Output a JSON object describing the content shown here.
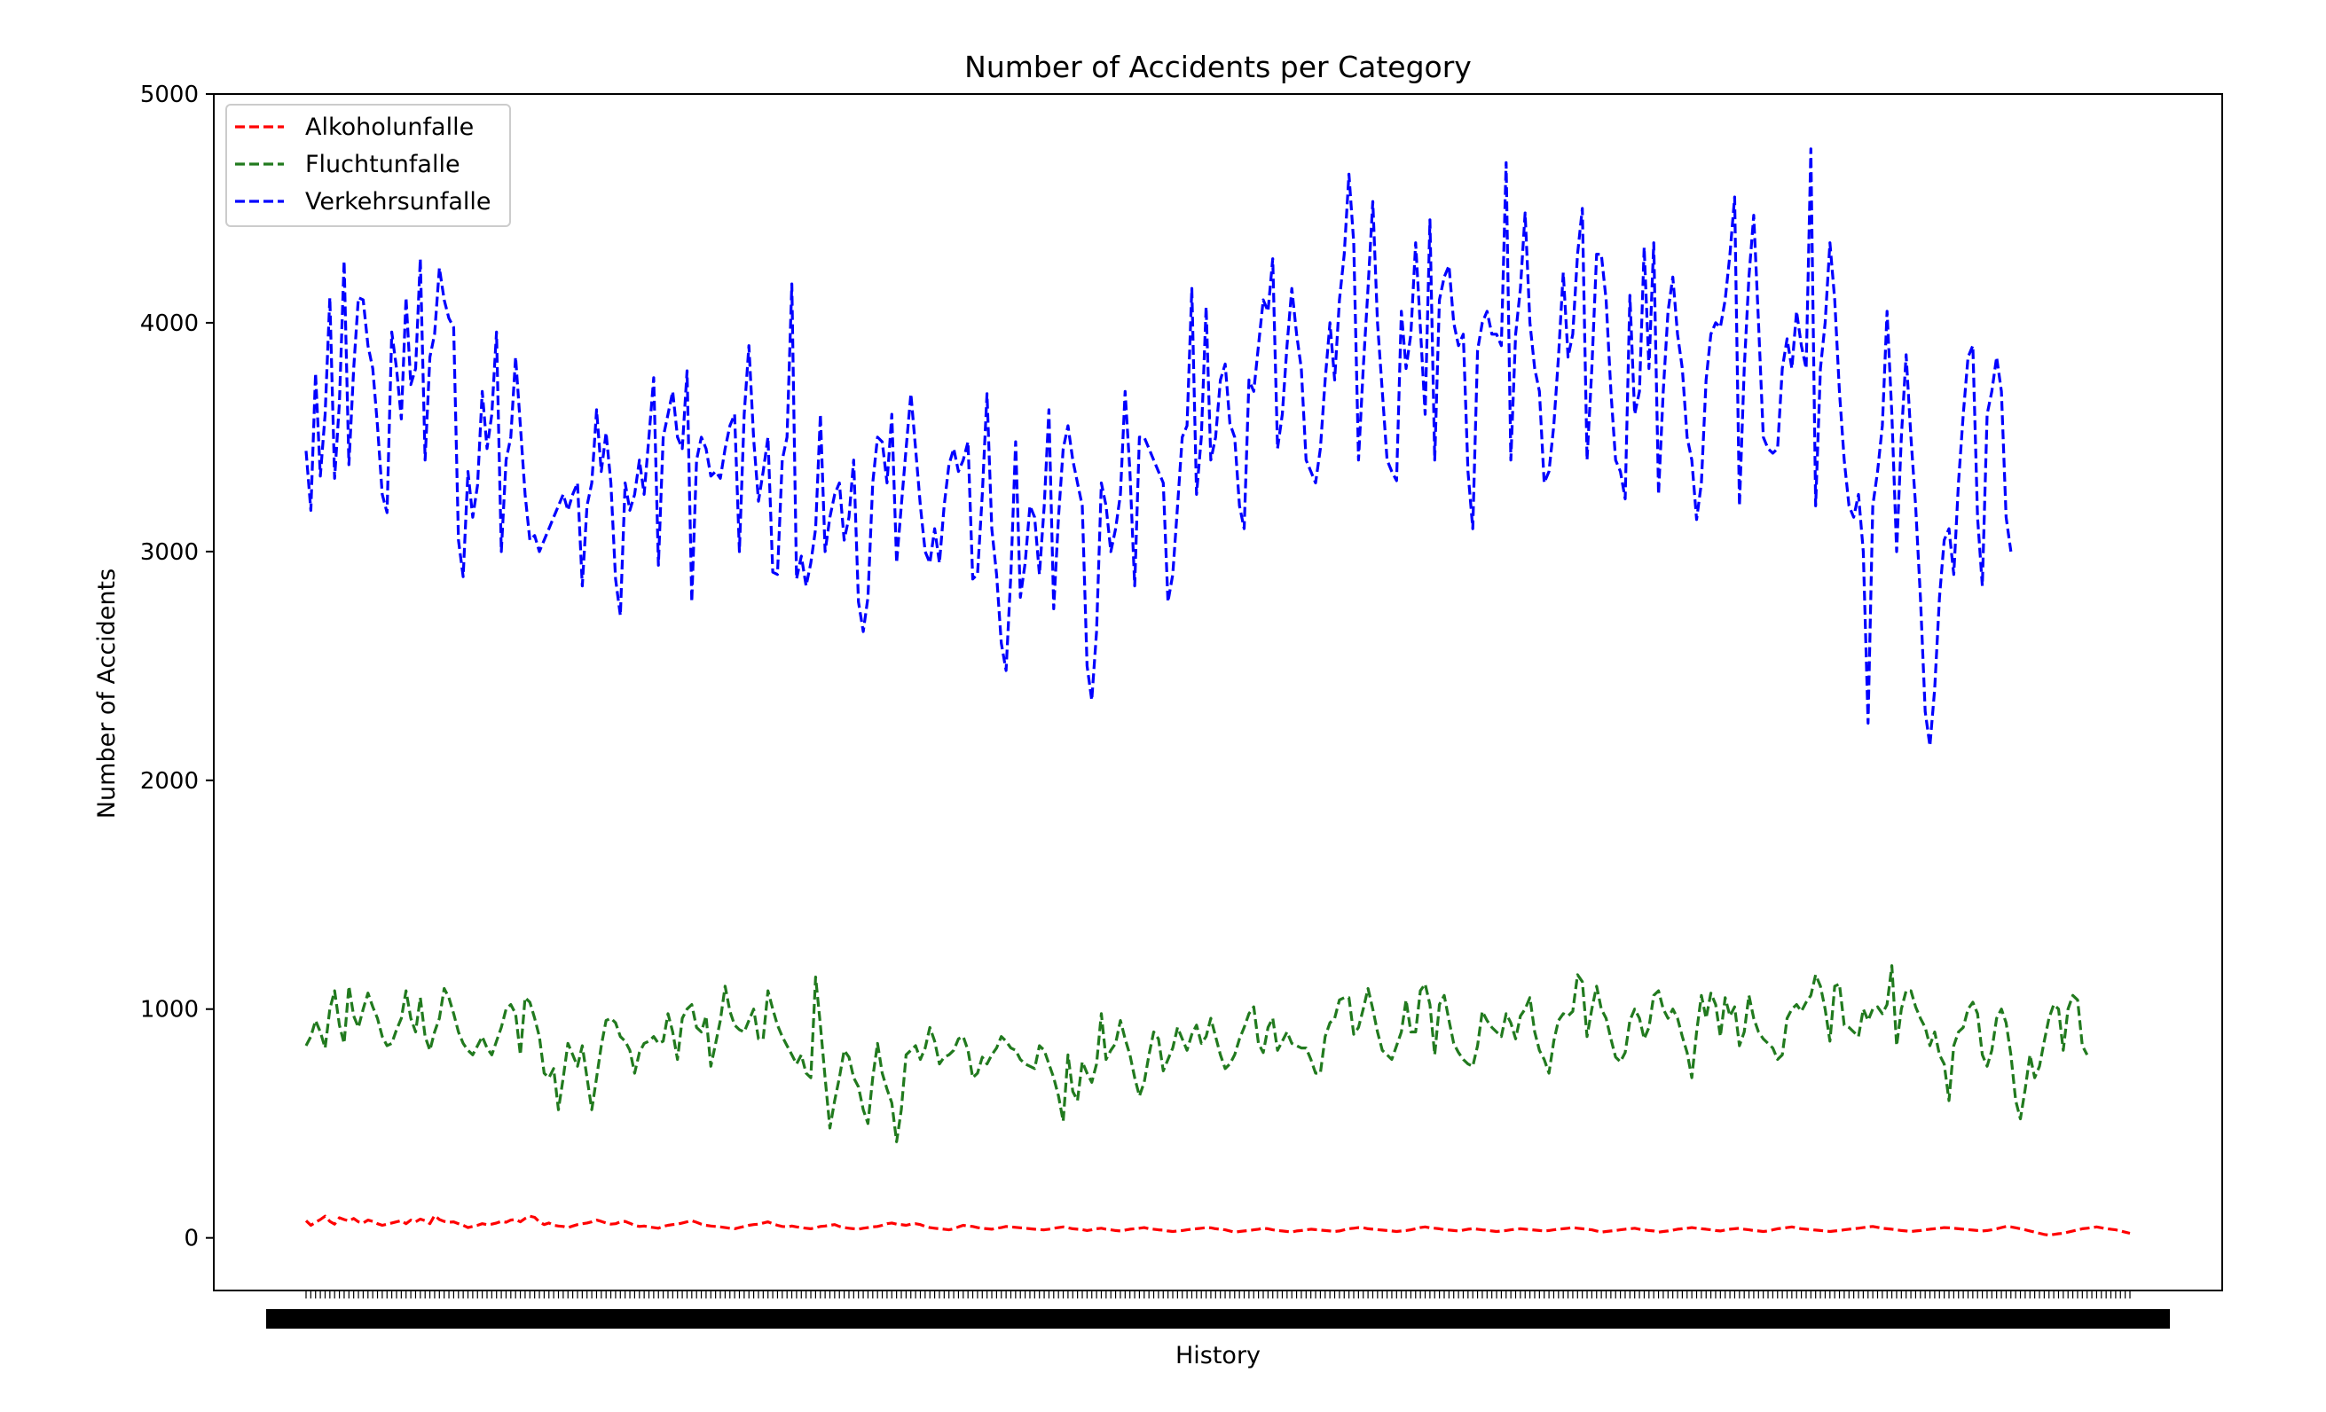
{
  "chart_data": {
    "type": "line",
    "title": "Number of Accidents per Category",
    "xlabel": "History",
    "ylabel": "Number of Accidents",
    "ylim": [
      -230,
      5000
    ],
    "yticks": [
      0,
      1000,
      2000,
      3000,
      4000,
      5000
    ],
    "grid": false,
    "legend_position": "top-left",
    "x_tick_labels": "illegible overlapping date labels (one per data point)",
    "series": [
      {
        "name": "Alkoholunfalle",
        "color": "#ff0000",
        "linestyle": "dashed",
        "values": [
          75,
          55,
          68,
          80,
          95,
          72,
          60,
          88,
          80,
          74,
          85,
          70,
          65,
          78,
          72,
          62,
          55,
          60,
          65,
          70,
          75,
          62,
          78,
          70,
          82,
          75,
          62,
          98,
          80,
          72,
          68,
          70,
          62,
          55,
          45,
          50,
          55,
          62,
          58,
          60,
          65,
          72,
          68,
          78,
          80,
          70,
          85,
          95,
          90,
          70,
          58,
          65,
          55,
          52,
          50,
          45,
          52,
          58,
          62,
          65,
          70,
          78,
          72,
          65,
          60,
          62,
          70,
          72,
          64,
          55,
          50,
          52,
          48,
          45,
          42,
          50,
          55,
          58,
          60,
          65,
          70,
          75,
          68,
          60,
          55,
          52,
          50,
          48,
          45,
          42,
          40,
          45,
          50,
          55,
          58,
          60,
          65,
          70,
          62,
          55,
          50,
          48,
          52,
          48,
          45,
          42,
          40,
          45,
          50,
          52,
          55,
          58,
          50,
          45,
          42,
          40,
          38,
          42,
          45,
          48,
          50,
          55,
          62,
          65,
          60,
          58,
          55,
          60,
          62,
          58,
          50,
          45,
          42,
          40,
          38,
          35,
          40,
          48,
          55,
          52,
          50,
          45,
          42,
          40,
          38,
          42,
          45,
          50,
          48,
          46,
          44,
          42,
          40,
          38,
          36,
          35,
          38,
          42,
          45,
          48,
          44,
          40,
          38,
          36,
          32,
          35,
          40,
          42,
          38,
          35,
          32,
          30,
          34,
          38,
          40,
          42,
          45,
          40,
          38,
          35,
          34,
          30,
          28,
          30,
          32,
          35,
          38,
          40,
          42,
          45,
          44,
          40,
          38,
          35,
          30,
          25,
          28,
          30,
          32,
          35,
          38,
          42,
          40,
          35,
          32,
          30,
          28,
          26,
          30,
          32,
          35,
          38,
          36,
          34,
          32,
          30,
          28,
          30,
          35,
          40,
          42,
          45,
          44,
          40,
          38,
          36,
          34,
          32,
          30,
          28,
          30,
          32,
          35,
          40,
          45,
          48,
          44,
          42,
          40,
          36,
          34,
          32,
          30,
          34,
          38,
          40,
          38,
          35,
          34,
          30,
          28,
          30,
          32,
          35,
          38,
          40,
          38,
          36,
          34,
          32,
          30,
          32,
          35,
          38,
          40,
          42,
          45,
          42,
          40,
          38,
          35,
          30,
          25,
          28,
          30,
          32,
          35,
          38,
          40,
          42,
          38,
          35,
          32,
          30,
          25,
          28,
          30,
          34,
          38,
          40,
          42,
          45,
          42,
          40,
          38,
          35,
          32,
          30,
          34,
          38,
          40,
          42,
          38,
          35,
          32,
          30,
          28,
          30,
          35,
          40,
          42,
          45,
          48,
          44,
          40,
          38,
          36,
          34,
          32,
          30,
          28,
          30,
          32,
          35,
          38,
          40,
          42,
          45,
          48,
          50,
          46,
          42,
          40,
          38,
          35,
          32,
          30,
          28,
          30,
          32,
          35,
          38,
          40,
          42,
          45,
          44,
          42,
          40,
          38,
          36,
          34,
          32,
          30,
          32,
          35,
          40,
          45,
          50,
          48,
          44,
          40,
          35,
          30,
          25,
          20,
          15,
          12,
          15,
          18,
          20,
          25,
          30,
          35,
          40,
          42,
          45,
          48,
          44,
          40,
          38,
          35,
          30,
          25,
          20
        ]
      },
      {
        "name": "Fluchtunfalle",
        "color": "#217a1e",
        "linestyle": "dashed",
        "values": [
          840,
          880,
          950,
          900,
          830,
          1000,
          1080,
          930,
          850,
          1100,
          970,
          920,
          1000,
          1070,
          1010,
          960,
          880,
          840,
          850,
          910,
          960,
          1080,
          960,
          900,
          1050,
          880,
          820,
          900,
          960,
          1090,
          1050,
          980,
          900,
          850,
          820,
          800,
          840,
          880,
          830,
          800,
          860,
          920,
          1000,
          1020,
          980,
          800,
          1050,
          1030,
          960,
          880,
          720,
          700,
          740,
          560,
          700,
          850,
          800,
          750,
          840,
          700,
          560,
          700,
          840,
          950,
          960,
          940,
          880,
          860,
          820,
          720,
          810,
          850,
          860,
          880,
          850,
          860,
          980,
          900,
          780,
          960,
          1000,
          1020,
          920,
          900,
          970,
          750,
          850,
          950,
          1100,
          990,
          930,
          910,
          900,
          950,
          1000,
          870,
          870,
          1080,
          1000,
          930,
          880,
          840,
          800,
          760,
          800,
          720,
          700,
          1140,
          930,
          700,
          480,
          600,
          700,
          820,
          790,
          700,
          660,
          560,
          500,
          700,
          850,
          720,
          650,
          590,
          420,
          560,
          800,
          820,
          840,
          780,
          830,
          920,
          860,
          760,
          790,
          800,
          820,
          870,
          880,
          820,
          700,
          720,
          790,
          760,
          800,
          830,
          880,
          860,
          830,
          820,
          780,
          760,
          750,
          740,
          840,
          820,
          760,
          700,
          620,
          510,
          800,
          640,
          600,
          770,
          720,
          680,
          760,
          980,
          780,
          820,
          850,
          950,
          870,
          800,
          700,
          620,
          680,
          800,
          900,
          870,
          730,
          780,
          830,
          920,
          870,
          820,
          890,
          930,
          850,
          880,
          960,
          880,
          800,
          740,
          760,
          800,
          870,
          920,
          980,
          1010,
          850,
          810,
          920,
          960,
          820,
          860,
          900,
          850,
          840,
          830,
          830,
          780,
          720,
          720,
          880,
          940,
          960,
          1040,
          1050,
          1050,
          890,
          920,
          1000,
          1090,
          1000,
          900,
          820,
          800,
          780,
          840,
          900,
          1040,
          900,
          900,
          1080,
          1110,
          1020,
          800,
          1020,
          1060,
          950,
          850,
          810,
          780,
          760,
          750,
          840,
          990,
          950,
          920,
          900,
          880,
          980,
          940,
          870,
          970,
          1000,
          1050,
          900,
          820,
          780,
          720,
          860,
          950,
          980,
          970,
          990,
          1150,
          1120,
          880,
          1000,
          1100,
          1000,
          960,
          870,
          790,
          770,
          810,
          950,
          1000,
          960,
          870,
          920,
          1060,
          1080,
          1000,
          960,
          1000,
          960,
          880,
          810,
          700,
          900,
          1060,
          960,
          1070,
          1020,
          880,
          1050,
          970,
          1010,
          840,
          900,
          1060,
          960,
          900,
          870,
          850,
          830,
          780,
          800,
          960,
          1000,
          1020,
          990,
          1030,
          1060,
          1150,
          1100,
          1000,
          860,
          1100,
          1110,
          930,
          920,
          900,
          880,
          1000,
          950,
          1000,
          1010,
          980,
          1020,
          1190,
          840,
          1000,
          1080,
          1080,
          1010,
          960,
          920,
          840,
          900,
          800,
          760,
          600,
          840,
          900,
          920,
          1000,
          1030,
          980,
          800,
          750,
          820,
          960,
          1000,
          940,
          800,
          600,
          520,
          650,
          800,
          700,
          750,
          860,
          960,
          1020,
          1000,
          820,
          1000,
          1060,
          1040,
          840,
          800
        ]
      },
      {
        "name": "Verkehrsunfalle",
        "color": "#0000ff",
        "linestyle": "dashed",
        "values": [
          3440,
          3180,
          3780,
          3330,
          3600,
          4110,
          3320,
          3650,
          4270,
          3380,
          3800,
          4110,
          4100,
          3900,
          3800,
          3550,
          3250,
          3170,
          3960,
          3800,
          3580,
          4110,
          3730,
          3800,
          4280,
          3400,
          3850,
          3950,
          4240,
          4100,
          4020,
          3980,
          3050,
          2890,
          3350,
          3150,
          3290,
          3700,
          3450,
          3600,
          3960,
          3000,
          3400,
          3500,
          3850,
          3550,
          3250,
          3050,
          3070,
          3000,
          3050,
          3100,
          3150,
          3200,
          3250,
          3180,
          3250,
          3300,
          2850,
          3200,
          3300,
          3620,
          3350,
          3520,
          3300,
          2880,
          2720,
          3300,
          3180,
          3250,
          3400,
          3250,
          3500,
          3760,
          2940,
          3500,
          3600,
          3700,
          3500,
          3450,
          3790,
          2780,
          3400,
          3500,
          3450,
          3330,
          3350,
          3320,
          3450,
          3550,
          3600,
          3000,
          3600,
          3900,
          3490,
          3220,
          3350,
          3500,
          2910,
          2900,
          3400,
          3500,
          4170,
          2880,
          2980,
          2850,
          2950,
          3100,
          3600,
          3000,
          3150,
          3250,
          3300,
          3050,
          3150,
          3400,
          2780,
          2650,
          2800,
          3300,
          3500,
          3480,
          3300,
          3600,
          2950,
          3200,
          3450,
          3690,
          3450,
          3200,
          3000,
          2950,
          3100,
          2950,
          3200,
          3380,
          3450,
          3350,
          3400,
          3480,
          2880,
          2900,
          3250,
          3690,
          3100,
          2900,
          2600,
          2480,
          2900,
          3480,
          2800,
          2950,
          3200,
          3150,
          2900,
          3200,
          3620,
          2750,
          3150,
          3450,
          3550,
          3400,
          3300,
          3200,
          2500,
          2350,
          2650,
          3300,
          3200,
          3000,
          3100,
          3250,
          3700,
          3350,
          2850,
          3500,
          3500,
          3450,
          3400,
          3350,
          3300,
          2780,
          2900,
          3200,
          3500,
          3550,
          4150,
          3250,
          3500,
          4070,
          3400,
          3500,
          3750,
          3820,
          3560,
          3500,
          3200,
          3100,
          3750,
          3700,
          3900,
          4100,
          4050,
          4280,
          3450,
          3600,
          3900,
          4150,
          3950,
          3800,
          3400,
          3350,
          3300,
          3450,
          3750,
          4000,
          3750,
          4100,
          4300,
          4650,
          4350,
          3400,
          3800,
          4150,
          4530,
          4000,
          3700,
          3400,
          3350,
          3310,
          4050,
          3800,
          3950,
          4350,
          3980,
          3600,
          4450,
          3400,
          4100,
          4200,
          4250,
          4000,
          3900,
          3950,
          3350,
          3100,
          3880,
          4000,
          4050,
          3950,
          3950,
          3900,
          4700,
          3400,
          3950,
          4150,
          4480,
          4000,
          3800,
          3700,
          3300,
          3350,
          3550,
          3850,
          4220,
          3850,
          3950,
          4300,
          4500,
          3400,
          3800,
          4300,
          4300,
          4100,
          3700,
          3400,
          3350,
          3230,
          4120,
          3600,
          3700,
          4330,
          3800,
          4350,
          3250,
          3700,
          4050,
          4200,
          3950,
          3800,
          3500,
          3400,
          3140,
          3300,
          3750,
          3950,
          4000,
          3980,
          4100,
          4300,
          4550,
          3200,
          3800,
          4200,
          4470,
          4000,
          3500,
          3450,
          3430,
          3450,
          3800,
          3930,
          3800,
          4050,
          3900,
          3800,
          4760,
          3200,
          3800,
          4000,
          4350,
          4100,
          3700,
          3400,
          3200,
          3150,
          3250,
          3000,
          2250,
          3200,
          3350,
          3550,
          4050,
          3600,
          3000,
          3500,
          3860,
          3500,
          3200,
          2800,
          2300,
          2150,
          2400,
          2800,
          3050,
          3100,
          2900,
          3300,
          3600,
          3850,
          3900,
          3150,
          2850,
          3600,
          3700,
          3850,
          3700,
          3150,
          3000
        ]
      }
    ]
  }
}
